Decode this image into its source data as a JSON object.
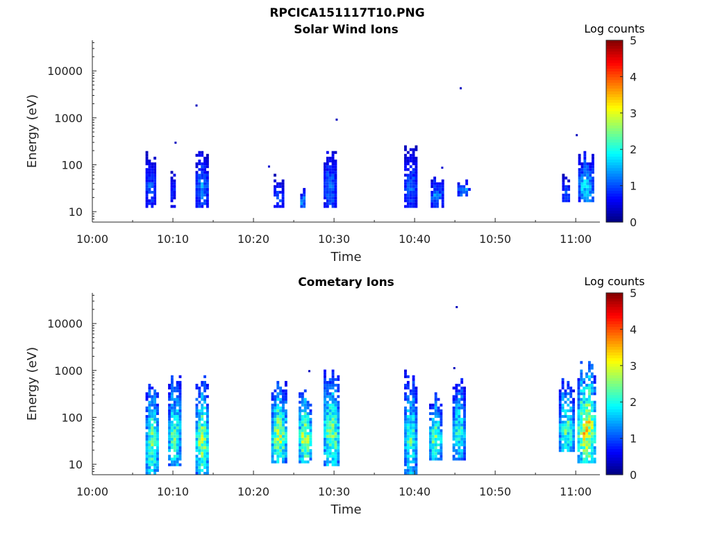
{
  "figure_title": "RPCICA151117T10.PNG",
  "chart_data": [
    {
      "type": "heatmap",
      "title": "Solar Wind Ions",
      "xlabel": "Time",
      "ylabel": "Energy (eV)",
      "x_ticks": [
        "10:00",
        "10:10",
        "10:20",
        "10:30",
        "10:40",
        "10:50",
        "11:00"
      ],
      "x_range_min": [
        0,
        63
      ],
      "y_ticks": [
        "10",
        "100",
        "1000",
        "10000"
      ],
      "y_scale": "log",
      "ylim_eV": [
        6,
        45000
      ],
      "colorbar": {
        "label": "Log counts",
        "min": 0,
        "max": 5,
        "ticks": [
          "0",
          "1",
          "2",
          "3",
          "4",
          "5"
        ],
        "colormap": "jet"
      },
      "bursts": [
        {
          "t": 6.6,
          "dur": 1.3,
          "emin": 12,
          "emax": 220,
          "peak": 1.2
        },
        {
          "t": 9.7,
          "dur": 0.8,
          "emin": 12,
          "emax": 100,
          "peak": 0.9
        },
        {
          "t": 12.8,
          "dur": 1.5,
          "emin": 12,
          "emax": 220,
          "peak": 1.4
        },
        {
          "t": 22.5,
          "dur": 1.3,
          "emin": 12,
          "emax": 60,
          "peak": 1.2
        },
        {
          "t": 25.8,
          "dur": 0.6,
          "emin": 12,
          "emax": 35,
          "peak": 1.7
        },
        {
          "t": 28.7,
          "dur": 1.7,
          "emin": 12,
          "emax": 200,
          "peak": 1.3
        },
        {
          "t": 38.7,
          "dur": 1.6,
          "emin": 12,
          "emax": 360,
          "peak": 1.2
        },
        {
          "t": 42.0,
          "dur": 1.7,
          "emin": 12,
          "emax": 70,
          "peak": 1.5
        },
        {
          "t": 45.3,
          "dur": 1.5,
          "emin": 20,
          "emax": 45,
          "peak": 1.6
        },
        {
          "t": 58.3,
          "dur": 1.0,
          "emin": 14,
          "emax": 70,
          "peak": 1.2
        },
        {
          "t": 60.3,
          "dur": 1.9,
          "emin": 14,
          "emax": 180,
          "peak": 1.9
        }
      ],
      "points": [
        {
          "t": 12.8,
          "e": 1800,
          "v": 0.3
        },
        {
          "t": 10.2,
          "e": 290,
          "v": 0.3
        },
        {
          "t": 30.2,
          "e": 900,
          "v": 0.3
        },
        {
          "t": 45.6,
          "e": 4200,
          "v": 0.3
        },
        {
          "t": 43.3,
          "e": 85,
          "v": 0.4
        },
        {
          "t": 21.8,
          "e": 90,
          "v": 0.4
        },
        {
          "t": 60.0,
          "e": 420,
          "v": 0.3
        }
      ]
    },
    {
      "type": "heatmap",
      "title": "Cometary Ions",
      "xlabel": "Time",
      "ylabel": "Energy (eV)",
      "x_ticks": [
        "10:00",
        "10:10",
        "10:20",
        "10:30",
        "10:40",
        "10:50",
        "11:00"
      ],
      "x_range_min": [
        0,
        63
      ],
      "y_ticks": [
        "10",
        "100",
        "1000",
        "10000"
      ],
      "y_scale": "log",
      "ylim_eV": [
        6,
        45000
      ],
      "colorbar": {
        "label": "Log counts",
        "min": 0,
        "max": 5,
        "ticks": [
          "0",
          "1",
          "2",
          "3",
          "4",
          "5"
        ],
        "colormap": "jet"
      },
      "bursts": [
        {
          "t": 6.6,
          "dur": 1.8,
          "emin": 6,
          "emax": 600,
          "peak": 2.6
        },
        {
          "t": 9.4,
          "dur": 1.8,
          "emin": 8,
          "emax": 900,
          "peak": 2.4
        },
        {
          "t": 12.8,
          "dur": 1.8,
          "emin": 6,
          "emax": 900,
          "peak": 2.8
        },
        {
          "t": 22.2,
          "dur": 1.9,
          "emin": 10,
          "emax": 700,
          "peak": 2.8
        },
        {
          "t": 25.6,
          "dur": 1.8,
          "emin": 10,
          "emax": 400,
          "peak": 2.9
        },
        {
          "t": 28.7,
          "dur": 1.9,
          "emin": 8,
          "emax": 1200,
          "peak": 2.7
        },
        {
          "t": 38.7,
          "dur": 1.5,
          "emin": 6,
          "emax": 1000,
          "peak": 2.3
        },
        {
          "t": 41.8,
          "dur": 1.8,
          "emin": 12,
          "emax": 350,
          "peak": 2.5
        },
        {
          "t": 44.7,
          "dur": 1.5,
          "emin": 12,
          "emax": 700,
          "peak": 2.2
        },
        {
          "t": 57.9,
          "dur": 1.9,
          "emin": 16,
          "emax": 700,
          "peak": 2.4
        },
        {
          "t": 60.2,
          "dur": 2.3,
          "emin": 10,
          "emax": 1500,
          "peak": 3.3
        }
      ],
      "points": [
        {
          "t": 45.1,
          "e": 22000,
          "v": 0.3
        },
        {
          "t": 44.8,
          "e": 1100,
          "v": 0.3
        },
        {
          "t": 26.8,
          "e": 950,
          "v": 0.3
        }
      ]
    }
  ]
}
